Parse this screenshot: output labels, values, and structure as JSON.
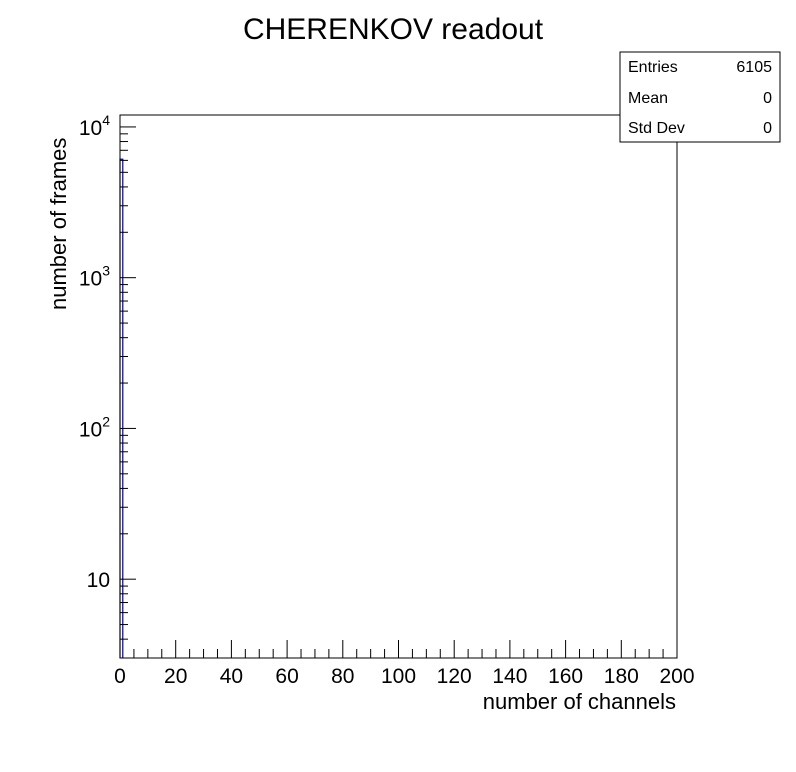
{
  "chart_data": {
    "type": "bar",
    "title": "CHERENKOV readout",
    "xlabel": "number of channels",
    "ylabel": "number of frames",
    "xlim": [
      0,
      200
    ],
    "ylim": [
      3,
      12000
    ],
    "yscale": "log",
    "grid": false,
    "x_tick_labels": [
      "0",
      "20",
      "40",
      "60",
      "80",
      "100",
      "120",
      "140",
      "160",
      "180",
      "200"
    ],
    "y_ticks": [
      {
        "value": 10,
        "base": "10",
        "exp": ""
      },
      {
        "value": 100,
        "base": "10",
        "exp": "2"
      },
      {
        "value": 1000,
        "base": "10",
        "exp": "3"
      },
      {
        "value": 10000,
        "base": "10",
        "exp": "4"
      }
    ],
    "bins": [
      {
        "x": 0,
        "value": 6105
      }
    ],
    "bin_width": 1,
    "bar_color": "#000099",
    "stats": {
      "placement": "top-right",
      "rows": [
        {
          "label": "Entries",
          "value": "6105"
        },
        {
          "label": "Mean",
          "value": "0"
        },
        {
          "label": "Std Dev",
          "value": "0"
        }
      ]
    }
  }
}
